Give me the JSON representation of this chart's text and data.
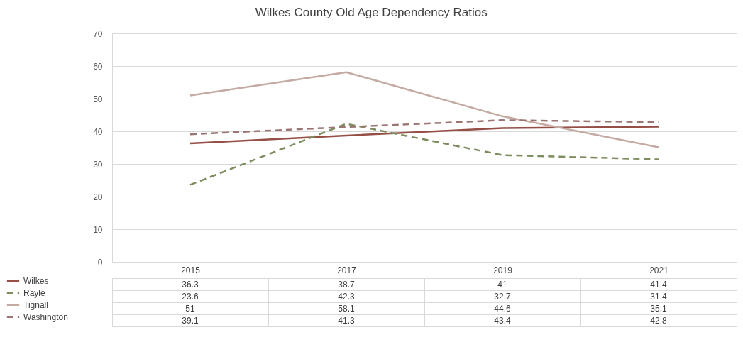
{
  "chart_data": {
    "type": "line",
    "title": "Wilkes County Old Age Dependency Ratios",
    "categories": [
      "2015",
      "2017",
      "2019",
      "2021"
    ],
    "series": [
      {
        "name": "Wilkes",
        "color": "#954f47",
        "line_style": "solid",
        "values": [
          36.3,
          38.7,
          41,
          41.4
        ]
      },
      {
        "name": "Rayle",
        "color": "#7d8c5e",
        "line_style": "dashed",
        "values": [
          23.6,
          42.3,
          32.7,
          31.4
        ]
      },
      {
        "name": "Tignall",
        "color": "#c4aaa3",
        "line_style": "solid",
        "values": [
          51,
          58.1,
          44.6,
          35.1
        ]
      },
      {
        "name": "Washington",
        "color": "#9b7572",
        "line_style": "dashed",
        "values": [
          39.1,
          41.3,
          43.4,
          42.8
        ]
      }
    ],
    "ylim": [
      0,
      70
    ],
    "yticks": [
      0,
      10,
      20,
      30,
      40,
      50,
      60,
      70
    ],
    "grid": "y",
    "legend": "bottom",
    "data_labels": true
  }
}
